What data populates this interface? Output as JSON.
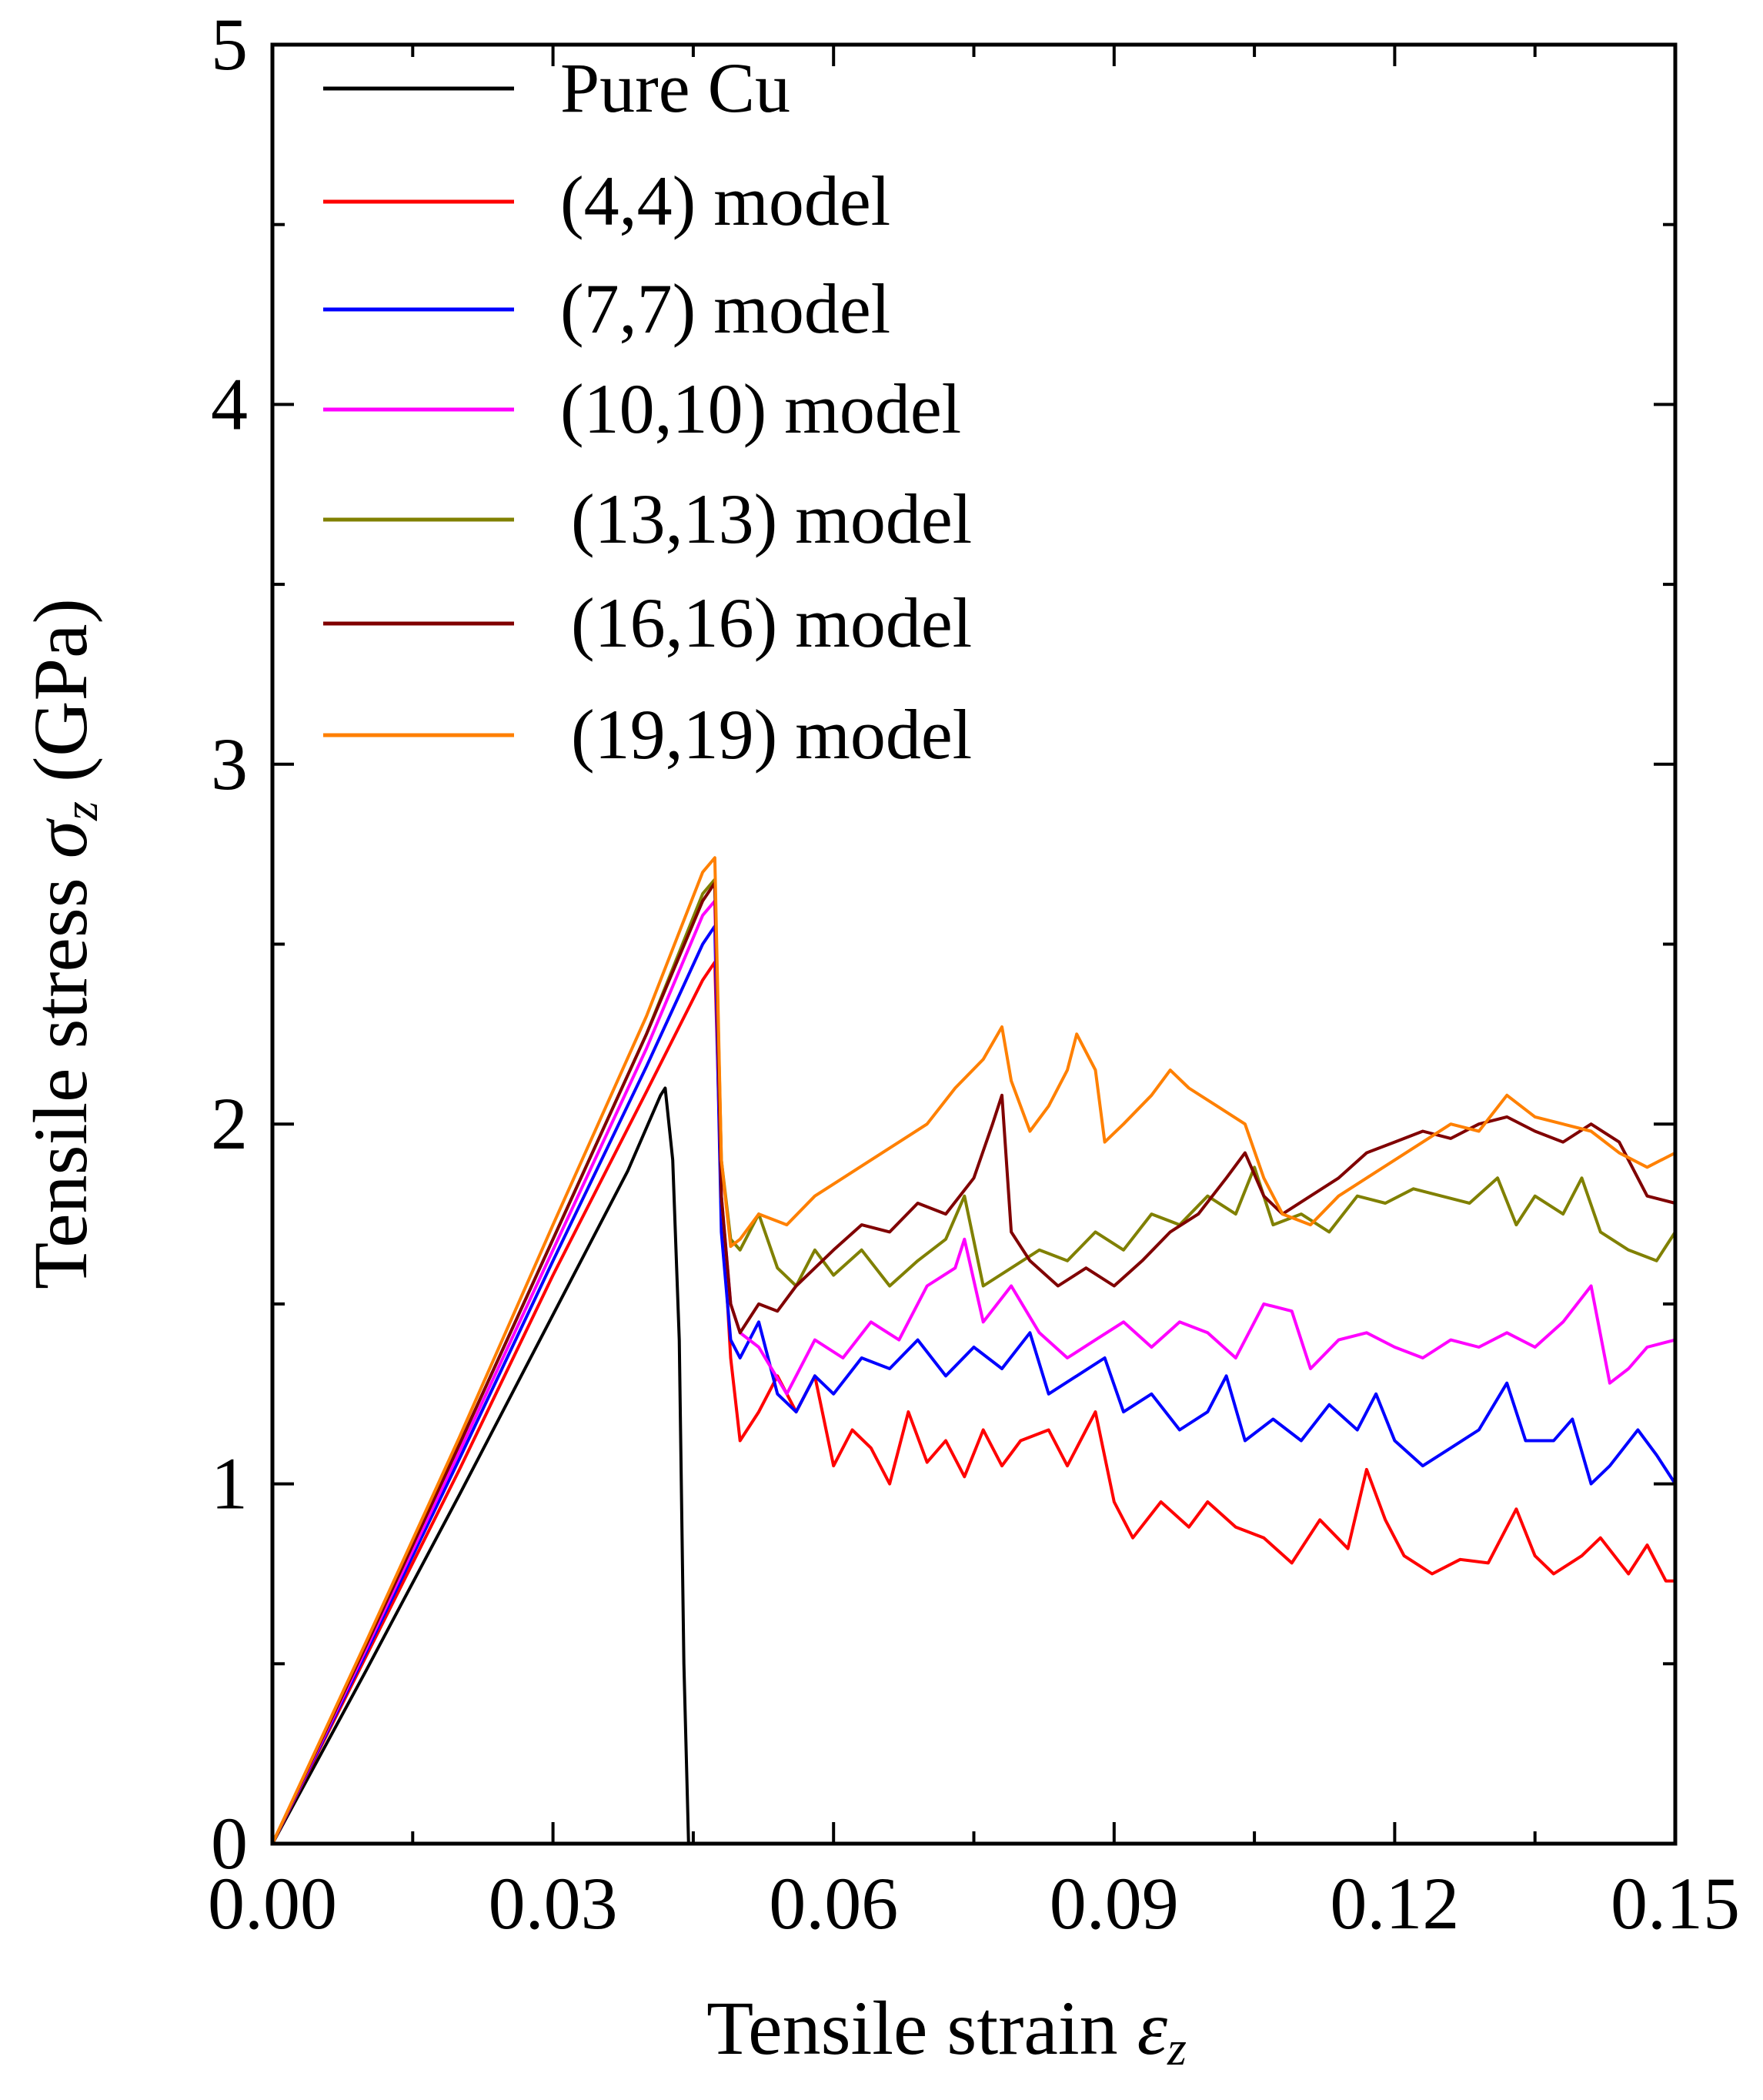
{
  "chart_data": {
    "type": "line",
    "title": "",
    "xlabel": "Tensile strain",
    "xlabel_symbol": "ε",
    "xlabel_sub": "z",
    "ylabel": "Tensile stress",
    "ylabel_symbol": "σ",
    "ylabel_sub": "z",
    "ylabel_unit": "(GPa)",
    "xlim": [
      0,
      0.15
    ],
    "ylim": [
      0,
      5
    ],
    "xticks": [
      0.0,
      0.03,
      0.06,
      0.09,
      0.12,
      0.15
    ],
    "xtick_labels": [
      "0.00",
      "0.03",
      "0.06",
      "0.09",
      "0.12",
      "0.15"
    ],
    "yticks": [
      0,
      1,
      2,
      3,
      4,
      5
    ],
    "ytick_labels": [
      "0",
      "1",
      "2",
      "3",
      "4",
      "5"
    ],
    "grid": false,
    "legend_position": "top-left",
    "series": [
      {
        "name": "Pure Cu",
        "color": "#000000",
        "points": [
          [
            0,
            0
          ],
          [
            0.01,
            0.48
          ],
          [
            0.02,
            0.97
          ],
          [
            0.03,
            1.47
          ],
          [
            0.038,
            1.87
          ],
          [
            0.0415,
            2.08
          ],
          [
            0.042,
            2.1
          ],
          [
            0.0428,
            1.9
          ],
          [
            0.0435,
            1.4
          ],
          [
            0.044,
            0.5
          ],
          [
            0.0445,
            0.0
          ]
        ]
      },
      {
        "name": "(4,4) model",
        "color": "#ff0000",
        "points": [
          [
            0,
            0
          ],
          [
            0.01,
            0.52
          ],
          [
            0.02,
            1.04
          ],
          [
            0.03,
            1.58
          ],
          [
            0.04,
            2.09
          ],
          [
            0.046,
            2.4
          ],
          [
            0.0473,
            2.45
          ],
          [
            0.048,
            1.8
          ],
          [
            0.049,
            1.35
          ],
          [
            0.05,
            1.12
          ],
          [
            0.052,
            1.2
          ],
          [
            0.054,
            1.3
          ],
          [
            0.056,
            1.2
          ],
          [
            0.058,
            1.3
          ],
          [
            0.06,
            1.05
          ],
          [
            0.062,
            1.15
          ],
          [
            0.064,
            1.1
          ],
          [
            0.066,
            1.0
          ],
          [
            0.068,
            1.2
          ],
          [
            0.07,
            1.06
          ],
          [
            0.072,
            1.12
          ],
          [
            0.074,
            1.02
          ],
          [
            0.076,
            1.15
          ],
          [
            0.078,
            1.05
          ],
          [
            0.08,
            1.12
          ],
          [
            0.083,
            1.15
          ],
          [
            0.085,
            1.05
          ],
          [
            0.088,
            1.2
          ],
          [
            0.09,
            0.95
          ],
          [
            0.092,
            0.85
          ],
          [
            0.095,
            0.95
          ],
          [
            0.098,
            0.88
          ],
          [
            0.1,
            0.95
          ],
          [
            0.103,
            0.88
          ],
          [
            0.106,
            0.85
          ],
          [
            0.109,
            0.78
          ],
          [
            0.112,
            0.9
          ],
          [
            0.115,
            0.82
          ],
          [
            0.117,
            1.04
          ],
          [
            0.119,
            0.9
          ],
          [
            0.121,
            0.8
          ],
          [
            0.124,
            0.75
          ],
          [
            0.127,
            0.79
          ],
          [
            0.13,
            0.78
          ],
          [
            0.133,
            0.93
          ],
          [
            0.135,
            0.8
          ],
          [
            0.137,
            0.75
          ],
          [
            0.14,
            0.8
          ],
          [
            0.142,
            0.85
          ],
          [
            0.145,
            0.75
          ],
          [
            0.147,
            0.83
          ],
          [
            0.149,
            0.73
          ],
          [
            0.15,
            0.73
          ]
        ]
      },
      {
        "name": "(7,7) model",
        "color": "#0000ff",
        "points": [
          [
            0,
            0
          ],
          [
            0.01,
            0.53
          ],
          [
            0.02,
            1.07
          ],
          [
            0.03,
            1.62
          ],
          [
            0.04,
            2.16
          ],
          [
            0.046,
            2.5
          ],
          [
            0.0473,
            2.55
          ],
          [
            0.048,
            1.7
          ],
          [
            0.049,
            1.4
          ],
          [
            0.05,
            1.35
          ],
          [
            0.052,
            1.45
          ],
          [
            0.054,
            1.25
          ],
          [
            0.056,
            1.2
          ],
          [
            0.058,
            1.3
          ],
          [
            0.06,
            1.25
          ],
          [
            0.063,
            1.35
          ],
          [
            0.066,
            1.32
          ],
          [
            0.069,
            1.4
          ],
          [
            0.072,
            1.3
          ],
          [
            0.075,
            1.38
          ],
          [
            0.078,
            1.32
          ],
          [
            0.081,
            1.42
          ],
          [
            0.083,
            1.25
          ],
          [
            0.086,
            1.3
          ],
          [
            0.089,
            1.35
          ],
          [
            0.091,
            1.2
          ],
          [
            0.094,
            1.25
          ],
          [
            0.097,
            1.15
          ],
          [
            0.1,
            1.2
          ],
          [
            0.102,
            1.3
          ],
          [
            0.104,
            1.12
          ],
          [
            0.107,
            1.18
          ],
          [
            0.11,
            1.12
          ],
          [
            0.113,
            1.22
          ],
          [
            0.116,
            1.15
          ],
          [
            0.118,
            1.25
          ],
          [
            0.12,
            1.12
          ],
          [
            0.123,
            1.05
          ],
          [
            0.126,
            1.1
          ],
          [
            0.129,
            1.15
          ],
          [
            0.132,
            1.28
          ],
          [
            0.134,
            1.12
          ],
          [
            0.137,
            1.12
          ],
          [
            0.139,
            1.18
          ],
          [
            0.141,
            1.0
          ],
          [
            0.143,
            1.05
          ],
          [
            0.146,
            1.15
          ],
          [
            0.148,
            1.08
          ],
          [
            0.15,
            1.0
          ]
        ]
      },
      {
        "name": "(10,10) model",
        "color": "#ff00ff",
        "points": [
          [
            0,
            0
          ],
          [
            0.01,
            0.54
          ],
          [
            0.02,
            1.09
          ],
          [
            0.03,
            1.65
          ],
          [
            0.04,
            2.21
          ],
          [
            0.046,
            2.58
          ],
          [
            0.0473,
            2.62
          ],
          [
            0.048,
            1.8
          ],
          [
            0.049,
            1.5
          ],
          [
            0.05,
            1.42
          ],
          [
            0.052,
            1.38
          ],
          [
            0.055,
            1.25
          ],
          [
            0.058,
            1.4
          ],
          [
            0.061,
            1.35
          ],
          [
            0.064,
            1.45
          ],
          [
            0.067,
            1.4
          ],
          [
            0.07,
            1.55
          ],
          [
            0.073,
            1.6
          ],
          [
            0.074,
            1.68
          ],
          [
            0.076,
            1.45
          ],
          [
            0.079,
            1.55
          ],
          [
            0.082,
            1.42
          ],
          [
            0.085,
            1.35
          ],
          [
            0.088,
            1.4
          ],
          [
            0.091,
            1.45
          ],
          [
            0.094,
            1.38
          ],
          [
            0.097,
            1.45
          ],
          [
            0.1,
            1.42
          ],
          [
            0.103,
            1.35
          ],
          [
            0.106,
            1.5
          ],
          [
            0.109,
            1.48
          ],
          [
            0.111,
            1.32
          ],
          [
            0.114,
            1.4
          ],
          [
            0.117,
            1.42
          ],
          [
            0.12,
            1.38
          ],
          [
            0.123,
            1.35
          ],
          [
            0.126,
            1.4
          ],
          [
            0.129,
            1.38
          ],
          [
            0.132,
            1.42
          ],
          [
            0.135,
            1.38
          ],
          [
            0.138,
            1.45
          ],
          [
            0.141,
            1.55
          ],
          [
            0.143,
            1.28
          ],
          [
            0.145,
            1.32
          ],
          [
            0.147,
            1.38
          ],
          [
            0.15,
            1.4
          ]
        ]
      },
      {
        "name": "(13,13) model",
        "color": "#808000",
        "points": [
          [
            0,
            0
          ],
          [
            0.01,
            0.55
          ],
          [
            0.02,
            1.11
          ],
          [
            0.03,
            1.68
          ],
          [
            0.04,
            2.25
          ],
          [
            0.046,
            2.64
          ],
          [
            0.0473,
            2.68
          ],
          [
            0.048,
            1.9
          ],
          [
            0.049,
            1.68
          ],
          [
            0.05,
            1.65
          ],
          [
            0.052,
            1.75
          ],
          [
            0.054,
            1.6
          ],
          [
            0.056,
            1.55
          ],
          [
            0.058,
            1.65
          ],
          [
            0.06,
            1.58
          ],
          [
            0.063,
            1.65
          ],
          [
            0.066,
            1.55
          ],
          [
            0.069,
            1.62
          ],
          [
            0.072,
            1.68
          ],
          [
            0.074,
            1.8
          ],
          [
            0.076,
            1.55
          ],
          [
            0.079,
            1.6
          ],
          [
            0.082,
            1.65
          ],
          [
            0.085,
            1.62
          ],
          [
            0.088,
            1.7
          ],
          [
            0.091,
            1.65
          ],
          [
            0.094,
            1.75
          ],
          [
            0.097,
            1.72
          ],
          [
            0.1,
            1.8
          ],
          [
            0.103,
            1.75
          ],
          [
            0.105,
            1.88
          ],
          [
            0.107,
            1.72
          ],
          [
            0.11,
            1.75
          ],
          [
            0.113,
            1.7
          ],
          [
            0.116,
            1.8
          ],
          [
            0.119,
            1.78
          ],
          [
            0.122,
            1.82
          ],
          [
            0.125,
            1.8
          ],
          [
            0.128,
            1.78
          ],
          [
            0.131,
            1.85
          ],
          [
            0.133,
            1.72
          ],
          [
            0.135,
            1.8
          ],
          [
            0.138,
            1.75
          ],
          [
            0.14,
            1.85
          ],
          [
            0.142,
            1.7
          ],
          [
            0.145,
            1.65
          ],
          [
            0.148,
            1.62
          ],
          [
            0.15,
            1.7
          ]
        ]
      },
      {
        "name": "(16,16) model",
        "color": "#800000",
        "points": [
          [
            0,
            0
          ],
          [
            0.01,
            0.55
          ],
          [
            0.02,
            1.11
          ],
          [
            0.03,
            1.68
          ],
          [
            0.04,
            2.25
          ],
          [
            0.046,
            2.62
          ],
          [
            0.0473,
            2.67
          ],
          [
            0.048,
            1.8
          ],
          [
            0.049,
            1.5
          ],
          [
            0.05,
            1.42
          ],
          [
            0.052,
            1.5
          ],
          [
            0.054,
            1.48
          ],
          [
            0.056,
            1.55
          ],
          [
            0.058,
            1.6
          ],
          [
            0.06,
            1.65
          ],
          [
            0.063,
            1.72
          ],
          [
            0.066,
            1.7
          ],
          [
            0.069,
            1.78
          ],
          [
            0.072,
            1.75
          ],
          [
            0.075,
            1.85
          ],
          [
            0.077,
            2.0
          ],
          [
            0.078,
            2.08
          ],
          [
            0.079,
            1.7
          ],
          [
            0.081,
            1.62
          ],
          [
            0.084,
            1.55
          ],
          [
            0.087,
            1.6
          ],
          [
            0.09,
            1.55
          ],
          [
            0.093,
            1.62
          ],
          [
            0.096,
            1.7
          ],
          [
            0.099,
            1.75
          ],
          [
            0.102,
            1.85
          ],
          [
            0.104,
            1.92
          ],
          [
            0.106,
            1.8
          ],
          [
            0.108,
            1.75
          ],
          [
            0.111,
            1.8
          ],
          [
            0.114,
            1.85
          ],
          [
            0.117,
            1.92
          ],
          [
            0.12,
            1.95
          ],
          [
            0.123,
            1.98
          ],
          [
            0.126,
            1.96
          ],
          [
            0.129,
            2.0
          ],
          [
            0.132,
            2.02
          ],
          [
            0.135,
            1.98
          ],
          [
            0.138,
            1.95
          ],
          [
            0.141,
            2.0
          ],
          [
            0.144,
            1.95
          ],
          [
            0.147,
            1.8
          ],
          [
            0.15,
            1.78
          ]
        ]
      },
      {
        "name": "(19,19) model",
        "color": "#ff8000",
        "points": [
          [
            0,
            0
          ],
          [
            0.01,
            0.56
          ],
          [
            0.02,
            1.13
          ],
          [
            0.03,
            1.72
          ],
          [
            0.04,
            2.3
          ],
          [
            0.046,
            2.7
          ],
          [
            0.0473,
            2.74
          ],
          [
            0.048,
            1.9
          ],
          [
            0.049,
            1.66
          ],
          [
            0.05,
            1.68
          ],
          [
            0.052,
            1.75
          ],
          [
            0.055,
            1.72
          ],
          [
            0.058,
            1.8
          ],
          [
            0.061,
            1.85
          ],
          [
            0.064,
            1.9
          ],
          [
            0.067,
            1.95
          ],
          [
            0.07,
            2.0
          ],
          [
            0.073,
            2.1
          ],
          [
            0.076,
            2.18
          ],
          [
            0.078,
            2.27
          ],
          [
            0.079,
            2.12
          ],
          [
            0.081,
            1.98
          ],
          [
            0.083,
            2.05
          ],
          [
            0.085,
            2.15
          ],
          [
            0.086,
            2.25
          ],
          [
            0.088,
            2.15
          ],
          [
            0.089,
            1.95
          ],
          [
            0.091,
            2.0
          ],
          [
            0.094,
            2.08
          ],
          [
            0.096,
            2.15
          ],
          [
            0.098,
            2.1
          ],
          [
            0.101,
            2.05
          ],
          [
            0.104,
            2.0
          ],
          [
            0.106,
            1.85
          ],
          [
            0.108,
            1.75
          ],
          [
            0.111,
            1.72
          ],
          [
            0.114,
            1.8
          ],
          [
            0.117,
            1.85
          ],
          [
            0.12,
            1.9
          ],
          [
            0.123,
            1.95
          ],
          [
            0.126,
            2.0
          ],
          [
            0.129,
            1.98
          ],
          [
            0.132,
            2.08
          ],
          [
            0.135,
            2.02
          ],
          [
            0.138,
            2.0
          ],
          [
            0.141,
            1.98
          ],
          [
            0.144,
            1.92
          ],
          [
            0.147,
            1.88
          ],
          [
            0.15,
            1.92
          ]
        ]
      }
    ]
  }
}
